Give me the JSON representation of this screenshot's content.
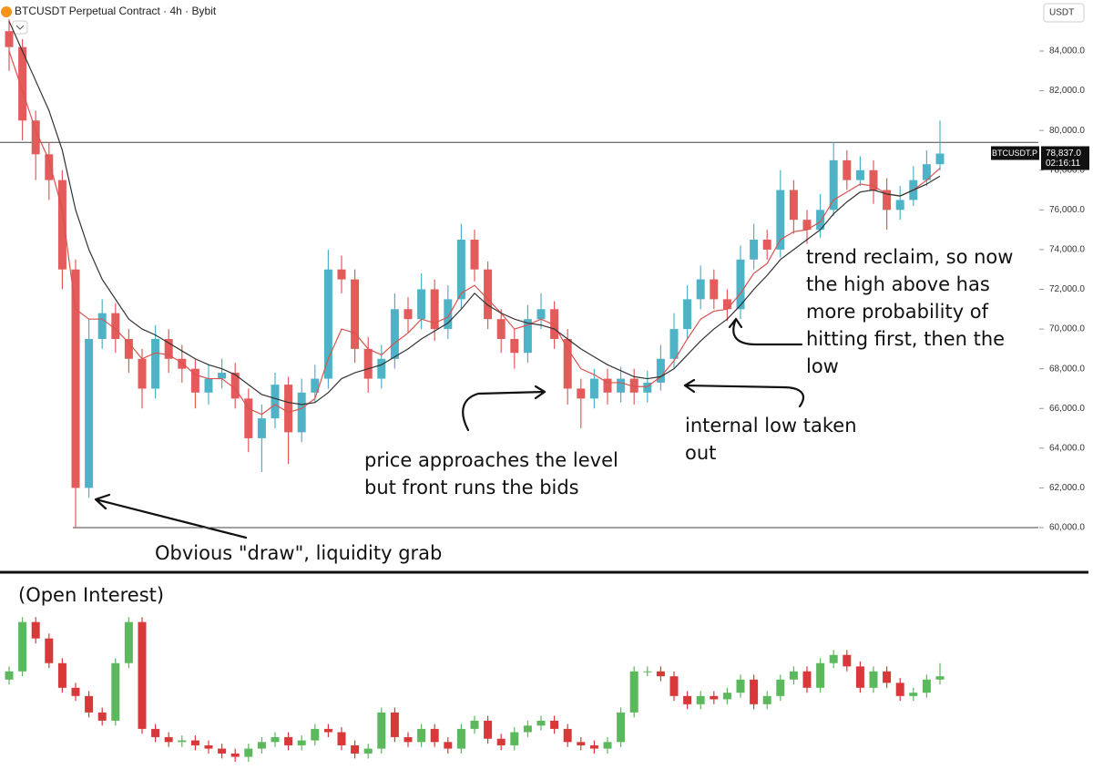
{
  "chart_data": [
    {
      "type": "candlestick",
      "title": "BTCUSDT Perpetual Contract · 4h · Bybit",
      "currency": "USDT",
      "up_color": "#4fb3c8",
      "down_color": "#e35b5b",
      "open": [
        85000,
        84200,
        80500,
        78800,
        77500,
        73000,
        62000,
        69500,
        70800,
        69500,
        68500,
        67000,
        69500,
        68500,
        68000,
        66800,
        67500,
        67800,
        66500,
        64500,
        65500,
        67200,
        64800,
        66800,
        67500,
        73000,
        72500,
        69000,
        67500,
        68500,
        71000,
        70500,
        72000,
        70000,
        71500,
        74500,
        73000,
        70500,
        69500,
        68800,
        70500,
        71000,
        69500,
        67000,
        66500,
        67500,
        66800,
        67500,
        66800,
        67300,
        68500,
        70000,
        71500,
        72500,
        71500,
        71000,
        73500,
        74500,
        74000,
        77000,
        75500,
        75000,
        76000,
        78500,
        77500,
        78000,
        77000,
        76000,
        76500,
        77500,
        78300
      ],
      "high": [
        85600,
        84600,
        81000,
        79400,
        78000,
        73500,
        70500,
        71500,
        71300,
        70000,
        69000,
        70200,
        70000,
        69200,
        68500,
        68200,
        68500,
        68300,
        67000,
        66200,
        67800,
        67600,
        67500,
        68200,
        74000,
        73700,
        73000,
        69600,
        69200,
        71800,
        71600,
        72800,
        72500,
        72200,
        75300,
        75000,
        73400,
        71000,
        70000,
        71200,
        71800,
        71400,
        70000,
        67500,
        68000,
        68000,
        68100,
        68000,
        67900,
        69200,
        70800,
        72200,
        73200,
        73000,
        72000,
        74200,
        75300,
        75000,
        78000,
        77500,
        76000,
        76800,
        79400,
        79000,
        78700,
        78500,
        77600,
        77200,
        78200,
        79000,
        80500
      ],
      "low": [
        83000,
        79500,
        77500,
        76500,
        72000,
        60000,
        61500,
        69000,
        68800,
        67800,
        66000,
        66500,
        67800,
        67300,
        66000,
        66200,
        67000,
        66000,
        63800,
        62800,
        65000,
        63200,
        64300,
        66300,
        67000,
        71800,
        68300,
        66800,
        67000,
        68000,
        69800,
        70000,
        69400,
        69500,
        71000,
        72400,
        70000,
        68800,
        68000,
        68300,
        70000,
        69000,
        66200,
        65000,
        66000,
        66200,
        66300,
        66200,
        66300,
        66900,
        68000,
        69500,
        71000,
        71000,
        70400,
        70500,
        73000,
        73500,
        73600,
        74800,
        74300,
        74600,
        75700,
        77000,
        77200,
        76300,
        75000,
        75500,
        76200,
        77200,
        78000
      ],
      "close": [
        84200,
        80500,
        78800,
        77500,
        73000,
        62000,
        69500,
        70800,
        69500,
        68500,
        67000,
        69500,
        68500,
        68000,
        66800,
        67500,
        67800,
        66500,
        64500,
        65500,
        67200,
        64800,
        66800,
        67500,
        73000,
        72500,
        69000,
        67500,
        68500,
        71000,
        70500,
        72000,
        70000,
        71500,
        74500,
        73000,
        70500,
        69500,
        68800,
        70500,
        71000,
        69500,
        67000,
        66500,
        67500,
        66800,
        67500,
        66800,
        67300,
        68500,
        70000,
        71500,
        72500,
        71500,
        71000,
        73500,
        74500,
        74000,
        77000,
        75500,
        75000,
        76000,
        78500,
        77500,
        78000,
        77000,
        76000,
        76500,
        77500,
        78300,
        78837
      ],
      "series": [
        {
          "color": "#d9534f",
          "values": [
            84000,
            82000,
            80000,
            78500,
            76000,
            71000,
            70500,
            70500,
            70000,
            69300,
            68500,
            68800,
            68700,
            68300,
            67700,
            67500,
            67500,
            67000,
            66000,
            65700,
            66200,
            65800,
            66000,
            66500,
            68500,
            70000,
            69800,
            69000,
            68700,
            69300,
            69800,
            70500,
            70300,
            70600,
            71800,
            72200,
            71500,
            70800,
            70000,
            70200,
            70500,
            70200,
            69000,
            68000,
            67700,
            67300,
            67300,
            67100,
            67100,
            67600,
            68400,
            69500,
            70500,
            70900,
            71000,
            71800,
            72800,
            73300,
            74500,
            74900,
            75000,
            75400,
            76500,
            76900,
            77300,
            77200,
            76800,
            76700,
            77000,
            77500,
            78100
          ]
        },
        {
          "color": "#333333",
          "values": [
            85500,
            84000,
            82500,
            81000,
            79000,
            76000,
            74000,
            72500,
            71500,
            70500,
            70000,
            69700,
            69300,
            68900,
            68500,
            68200,
            68000,
            67700,
            67200,
            66700,
            66500,
            66300,
            66200,
            66300,
            66800,
            67500,
            67800,
            68000,
            68200,
            68600,
            69000,
            69500,
            69900,
            70300,
            71000,
            71800,
            71200,
            70800,
            70500,
            70300,
            70200,
            70000,
            69500,
            69000,
            68600,
            68200,
            67900,
            67600,
            67500,
            67600,
            68000,
            68700,
            69400,
            70000,
            70500,
            71200,
            72000,
            72700,
            73500,
            74000,
            74500,
            75000,
            75800,
            76400,
            76900,
            77000,
            76800,
            76700,
            77000,
            77300,
            77700
          ]
        }
      ],
      "levels": [
        79400,
        60000
      ],
      "price_tag": {
        "value": 78837,
        "label": "78,837.0",
        "symbol": "BTCUSDT.P",
        "countdown": "02:16:11"
      },
      "ylim": [
        59036,
        85193
      ],
      "yticks": [
        {
          "value": 60000,
          "label": "60,000.0"
        },
        {
          "value": 62000,
          "label": "62,000.0"
        },
        {
          "value": 64000,
          "label": "64,000.0"
        },
        {
          "value": 66000,
          "label": "66,000.0"
        },
        {
          "value": 68000,
          "label": "68,000.0"
        },
        {
          "value": 70000,
          "label": "70,000.0"
        },
        {
          "value": 72000,
          "label": "72,000.0"
        },
        {
          "value": 74000,
          "label": "74,000.0"
        },
        {
          "value": 76000,
          "label": "76,000.0"
        },
        {
          "value": 78000,
          "label": "78,000.0"
        },
        {
          "value": 80000,
          "label": "80,000.0"
        },
        {
          "value": 82000,
          "label": "82,000.0"
        },
        {
          "value": 84000,
          "label": "84,000.0"
        }
      ],
      "annotations": [
        {
          "lines": [
            "Obvious \"draw\", liquidity grab"
          ]
        },
        {
          "lines": [
            "price approaches the level",
            "but front runs the bids"
          ]
        },
        {
          "lines": [
            "internal low taken",
            "out"
          ]
        },
        {
          "lines": [
            "trend reclaim, so now",
            "the high above has",
            "more probability of",
            "hitting first, then the",
            "low"
          ]
        }
      ]
    },
    {
      "type": "candlestick",
      "title": "(Open Interest)",
      "up_color": "#5cb85c",
      "down_color": "#d9383a",
      "open": [
        50,
        55,
        85,
        75,
        60,
        45,
        40,
        30,
        25,
        60,
        85,
        20,
        15,
        12,
        13,
        10,
        8,
        5,
        3,
        8,
        12,
        15,
        10,
        13,
        20,
        18,
        10,
        5,
        8,
        30,
        15,
        12,
        20,
        12,
        8,
        20,
        25,
        14,
        10,
        18,
        22,
        25,
        20,
        12,
        10,
        8,
        12,
        30,
        55,
        55,
        52,
        40,
        35,
        40,
        38,
        42,
        50,
        35,
        40,
        50,
        55,
        45,
        60,
        65,
        58,
        45,
        55,
        48,
        40,
        42,
        50
      ],
      "high": [
        58,
        88,
        88,
        78,
        63,
        48,
        43,
        33,
        63,
        88,
        88,
        23,
        18,
        16,
        16,
        13,
        11,
        8,
        11,
        15,
        18,
        18,
        16,
        23,
        23,
        21,
        13,
        11,
        33,
        33,
        18,
        23,
        23,
        15,
        23,
        28,
        28,
        17,
        21,
        25,
        28,
        28,
        23,
        15,
        13,
        15,
        33,
        58,
        58,
        58,
        55,
        43,
        43,
        43,
        45,
        53,
        53,
        43,
        53,
        58,
        58,
        63,
        68,
        68,
        61,
        58,
        58,
        51,
        45,
        53,
        60
      ],
      "low": [
        47,
        52,
        72,
        57,
        42,
        37,
        27,
        22,
        22,
        57,
        17,
        12,
        9,
        9,
        7,
        5,
        2,
        0,
        0,
        5,
        9,
        7,
        7,
        10,
        15,
        7,
        2,
        2,
        5,
        12,
        9,
        9,
        9,
        5,
        5,
        17,
        11,
        7,
        7,
        15,
        19,
        17,
        9,
        7,
        5,
        5,
        9,
        27,
        52,
        49,
        37,
        32,
        32,
        35,
        35,
        39,
        32,
        32,
        37,
        47,
        42,
        42,
        57,
        55,
        42,
        42,
        45,
        37,
        37,
        39,
        47
      ],
      "close": [
        55,
        85,
        75,
        60,
        45,
        40,
        30,
        25,
        60,
        85,
        20,
        15,
        12,
        13,
        10,
        8,
        5,
        3,
        8,
        12,
        15,
        10,
        13,
        20,
        18,
        10,
        5,
        8,
        30,
        15,
        12,
        20,
        12,
        8,
        20,
        25,
        14,
        10,
        18,
        22,
        25,
        20,
        12,
        10,
        8,
        12,
        30,
        55,
        55,
        52,
        40,
        35,
        40,
        38,
        42,
        50,
        35,
        40,
        50,
        55,
        45,
        60,
        65,
        58,
        45,
        55,
        48,
        40,
        42,
        50,
        52
      ],
      "ylim": [
        -5,
        92
      ]
    }
  ]
}
